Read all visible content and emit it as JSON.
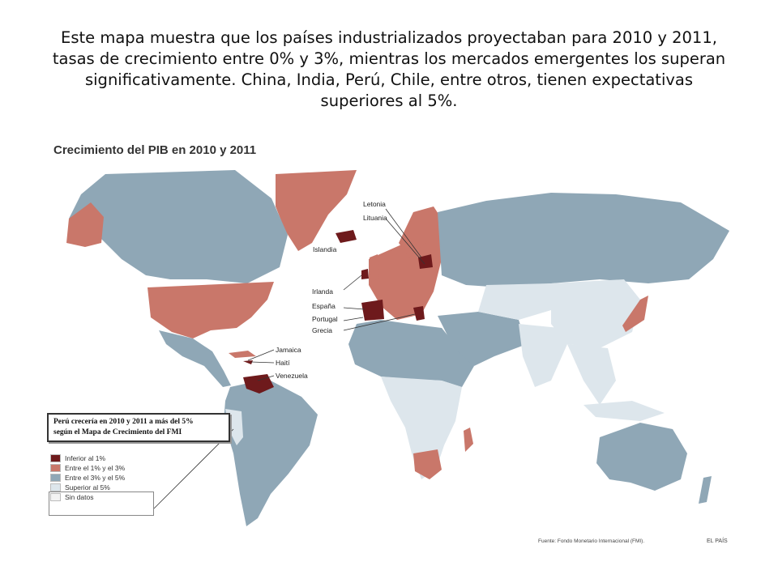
{
  "caption": "Este mapa muestra que los países industrializados proyectaban para 2010 y 2011, tasas de crecimiento entre 0% y 3%, mientras los mercados emergentes los superan significativamente. China, India, Perú, Chile, entre otros, tienen expectativas superiores al 5%.",
  "map": {
    "title": "Crecimiento del PIB en 2010 y 2011",
    "labels": {
      "letonia": "Letonia",
      "lituania": "Lituania",
      "islandia": "Islandia",
      "irlanda": "Irlanda",
      "espana": "España",
      "portugal": "Portugal",
      "grecia": "Grecia",
      "jamaica": "Jamaica",
      "haiti": "Haití",
      "venezuela": "Venezuela"
    },
    "callout_line1": "Perú crecería en 2010 y 2011 a más del 5%",
    "callout_line2": "según el Mapa de Crecimiento del FMI",
    "legend": [
      {
        "label": "Inferior al 1%",
        "color": "#6e1a1c"
      },
      {
        "label": "Entre el 1% y el 3%",
        "color": "#c9776a"
      },
      {
        "label": "Entre el 3% y el 5%",
        "color": "#8fa7b6"
      },
      {
        "label": "Superior al 5%",
        "color": "#dde6ec"
      },
      {
        "label": "Sin datos",
        "color": "#f3f3f3"
      }
    ],
    "source": "Fuente: Fondo Monetario Internacional (FMI).",
    "brand": "EL PAÍS"
  }
}
